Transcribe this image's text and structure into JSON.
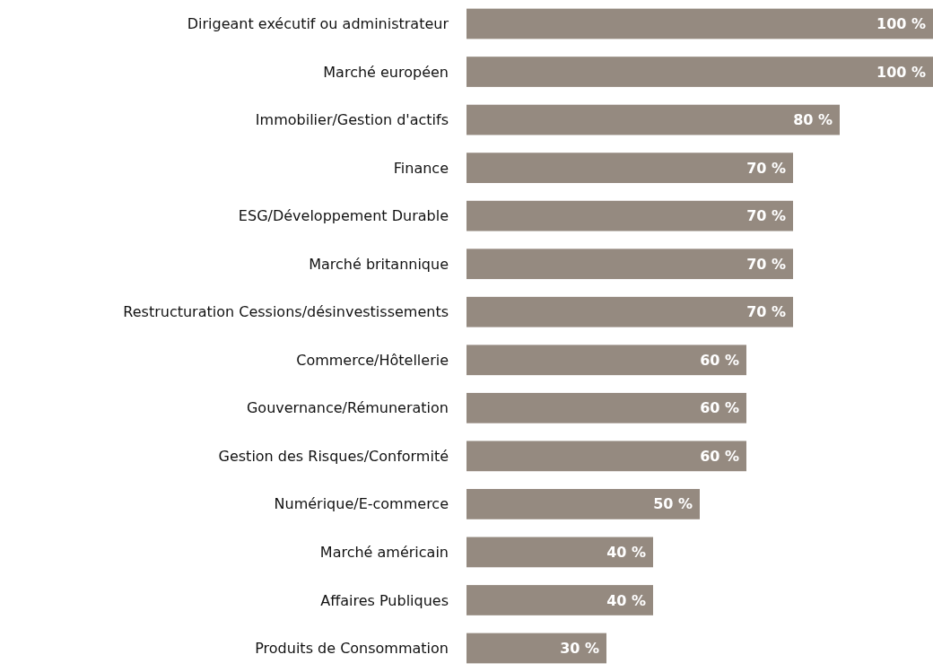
{
  "chart_data": {
    "type": "bar",
    "orientation": "horizontal",
    "color": "#958a80",
    "categories": [
      "Dirigeant exécutif ou administrateur",
      "Marché européen",
      "Immobilier/Gestion d'actifs",
      "Finance",
      "ESG/Développement Durable",
      "Marché britannique",
      "Restructuration Cessions/désinvestissements",
      "Commerce/Hôtellerie",
      "Gouvernance/Rémuneration",
      "Gestion des Risques/Conformité",
      "Numérique/E-commerce",
      "Marché américain",
      "Affaires Publiques",
      "Produits de Consommation"
    ],
    "values": [
      100,
      100,
      80,
      70,
      70,
      70,
      70,
      60,
      60,
      60,
      50,
      40,
      40,
      30
    ],
    "value_labels": [
      "100 %",
      "100 %",
      "80 %",
      "70 %",
      "70 %",
      "70 %",
      "70 %",
      "60 %",
      "60 %",
      "60 %",
      "50 %",
      "40 %",
      "40 %",
      "30 %"
    ]
  }
}
